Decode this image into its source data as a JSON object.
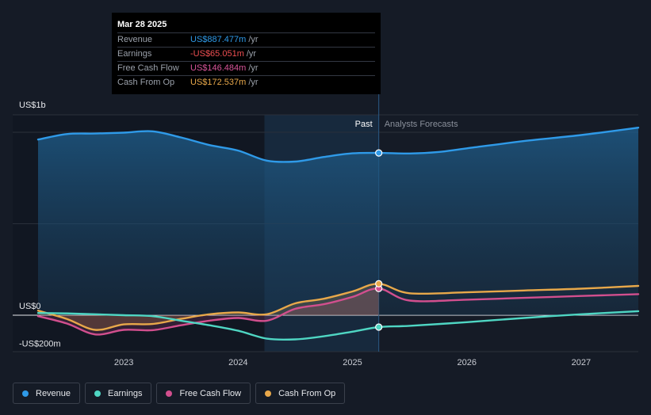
{
  "tooltip": {
    "date": "Mar 28 2025",
    "rows": [
      {
        "name": "Revenue",
        "value": "US$887.477m",
        "unit": "/yr",
        "color": "#2f9ae8"
      },
      {
        "name": "Earnings",
        "value": "-US$65.051m",
        "unit": "/yr",
        "color": "#ef4f52"
      },
      {
        "name": "Free Cash Flow",
        "value": "US$146.484m",
        "unit": "/yr",
        "color": "#d9559a"
      },
      {
        "name": "Cash From Op",
        "value": "US$172.537m",
        "unit": "/yr",
        "color": "#e8a84a"
      }
    ]
  },
  "legend": [
    {
      "name": "Revenue",
      "color": "#2f9ae8"
    },
    {
      "name": "Earnings",
      "color": "#4fd6c3"
    },
    {
      "name": "Free Cash Flow",
      "color": "#d24f8e"
    },
    {
      "name": "Cash From Op",
      "color": "#e8a84a"
    }
  ],
  "chart_data": {
    "type": "line",
    "y_unit": "US$m",
    "y_axis_labels": {
      "top": "US$1b",
      "zero": "US$0",
      "bottom": "-US$200m"
    },
    "ylim": [
      -200,
      1000
    ],
    "xlim": [
      2022.25,
      2027.5
    ],
    "x_ticks": [
      "2023",
      "2024",
      "2025",
      "2026",
      "2027"
    ],
    "x_tick_values": [
      2023,
      2024,
      2025,
      2026,
      2027
    ],
    "past_label": "Past",
    "forecast_label": "Analysts Forecasts",
    "today_x": 2025.23,
    "past_highlight_start": 2024.23,
    "series": [
      {
        "name": "Revenue",
        "color": "#2f9ae8",
        "fill": true,
        "points": [
          [
            2022.25,
            960
          ],
          [
            2022.5,
            990
          ],
          [
            2022.75,
            993
          ],
          [
            2023.0,
            998
          ],
          [
            2023.25,
            1005
          ],
          [
            2023.5,
            972
          ],
          [
            2023.75,
            930
          ],
          [
            2024.0,
            900
          ],
          [
            2024.25,
            845
          ],
          [
            2024.5,
            840
          ],
          [
            2024.75,
            865
          ],
          [
            2025.0,
            885
          ],
          [
            2025.23,
            887
          ],
          [
            2025.5,
            884
          ],
          [
            2025.75,
            892
          ],
          [
            2026.0,
            912
          ],
          [
            2026.5,
            952
          ],
          [
            2027.0,
            985
          ],
          [
            2027.5,
            1025
          ]
        ]
      },
      {
        "name": "Earnings",
        "color": "#4fd6c3",
        "fill": false,
        "points": [
          [
            2022.25,
            12
          ],
          [
            2022.5,
            10
          ],
          [
            2022.75,
            5
          ],
          [
            2023.0,
            0
          ],
          [
            2023.25,
            -5
          ],
          [
            2023.5,
            -30
          ],
          [
            2023.75,
            -55
          ],
          [
            2024.0,
            -85
          ],
          [
            2024.25,
            -128
          ],
          [
            2024.5,
            -132
          ],
          [
            2024.75,
            -115
          ],
          [
            2025.0,
            -90
          ],
          [
            2025.23,
            -65
          ],
          [
            2025.5,
            -58
          ],
          [
            2026.0,
            -38
          ],
          [
            2026.5,
            -15
          ],
          [
            2027.0,
            5
          ],
          [
            2027.5,
            22
          ]
        ]
      },
      {
        "name": "Free Cash Flow",
        "color": "#d24f8e",
        "fill": true,
        "points": [
          [
            2022.25,
            -5
          ],
          [
            2022.5,
            -45
          ],
          [
            2022.75,
            -105
          ],
          [
            2023.0,
            -80
          ],
          [
            2023.25,
            -82
          ],
          [
            2023.5,
            -55
          ],
          [
            2023.75,
            -30
          ],
          [
            2024.0,
            -15
          ],
          [
            2024.25,
            -30
          ],
          [
            2024.5,
            35
          ],
          [
            2024.75,
            60
          ],
          [
            2025.0,
            100
          ],
          [
            2025.23,
            146
          ],
          [
            2025.5,
            80
          ],
          [
            2026.0,
            85
          ],
          [
            2026.5,
            95
          ],
          [
            2027.0,
            105
          ],
          [
            2027.5,
            115
          ]
        ]
      },
      {
        "name": "Cash From Op",
        "color": "#e8a84a",
        "fill": true,
        "points": [
          [
            2022.25,
            25
          ],
          [
            2022.5,
            -20
          ],
          [
            2022.75,
            -80
          ],
          [
            2023.0,
            -50
          ],
          [
            2023.25,
            -48
          ],
          [
            2023.5,
            -20
          ],
          [
            2023.75,
            5
          ],
          [
            2024.0,
            15
          ],
          [
            2024.25,
            5
          ],
          [
            2024.5,
            65
          ],
          [
            2024.75,
            90
          ],
          [
            2025.0,
            130
          ],
          [
            2025.23,
            172
          ],
          [
            2025.5,
            120
          ],
          [
            2026.0,
            125
          ],
          [
            2026.5,
            135
          ],
          [
            2027.0,
            145
          ],
          [
            2027.5,
            160
          ]
        ]
      }
    ]
  }
}
